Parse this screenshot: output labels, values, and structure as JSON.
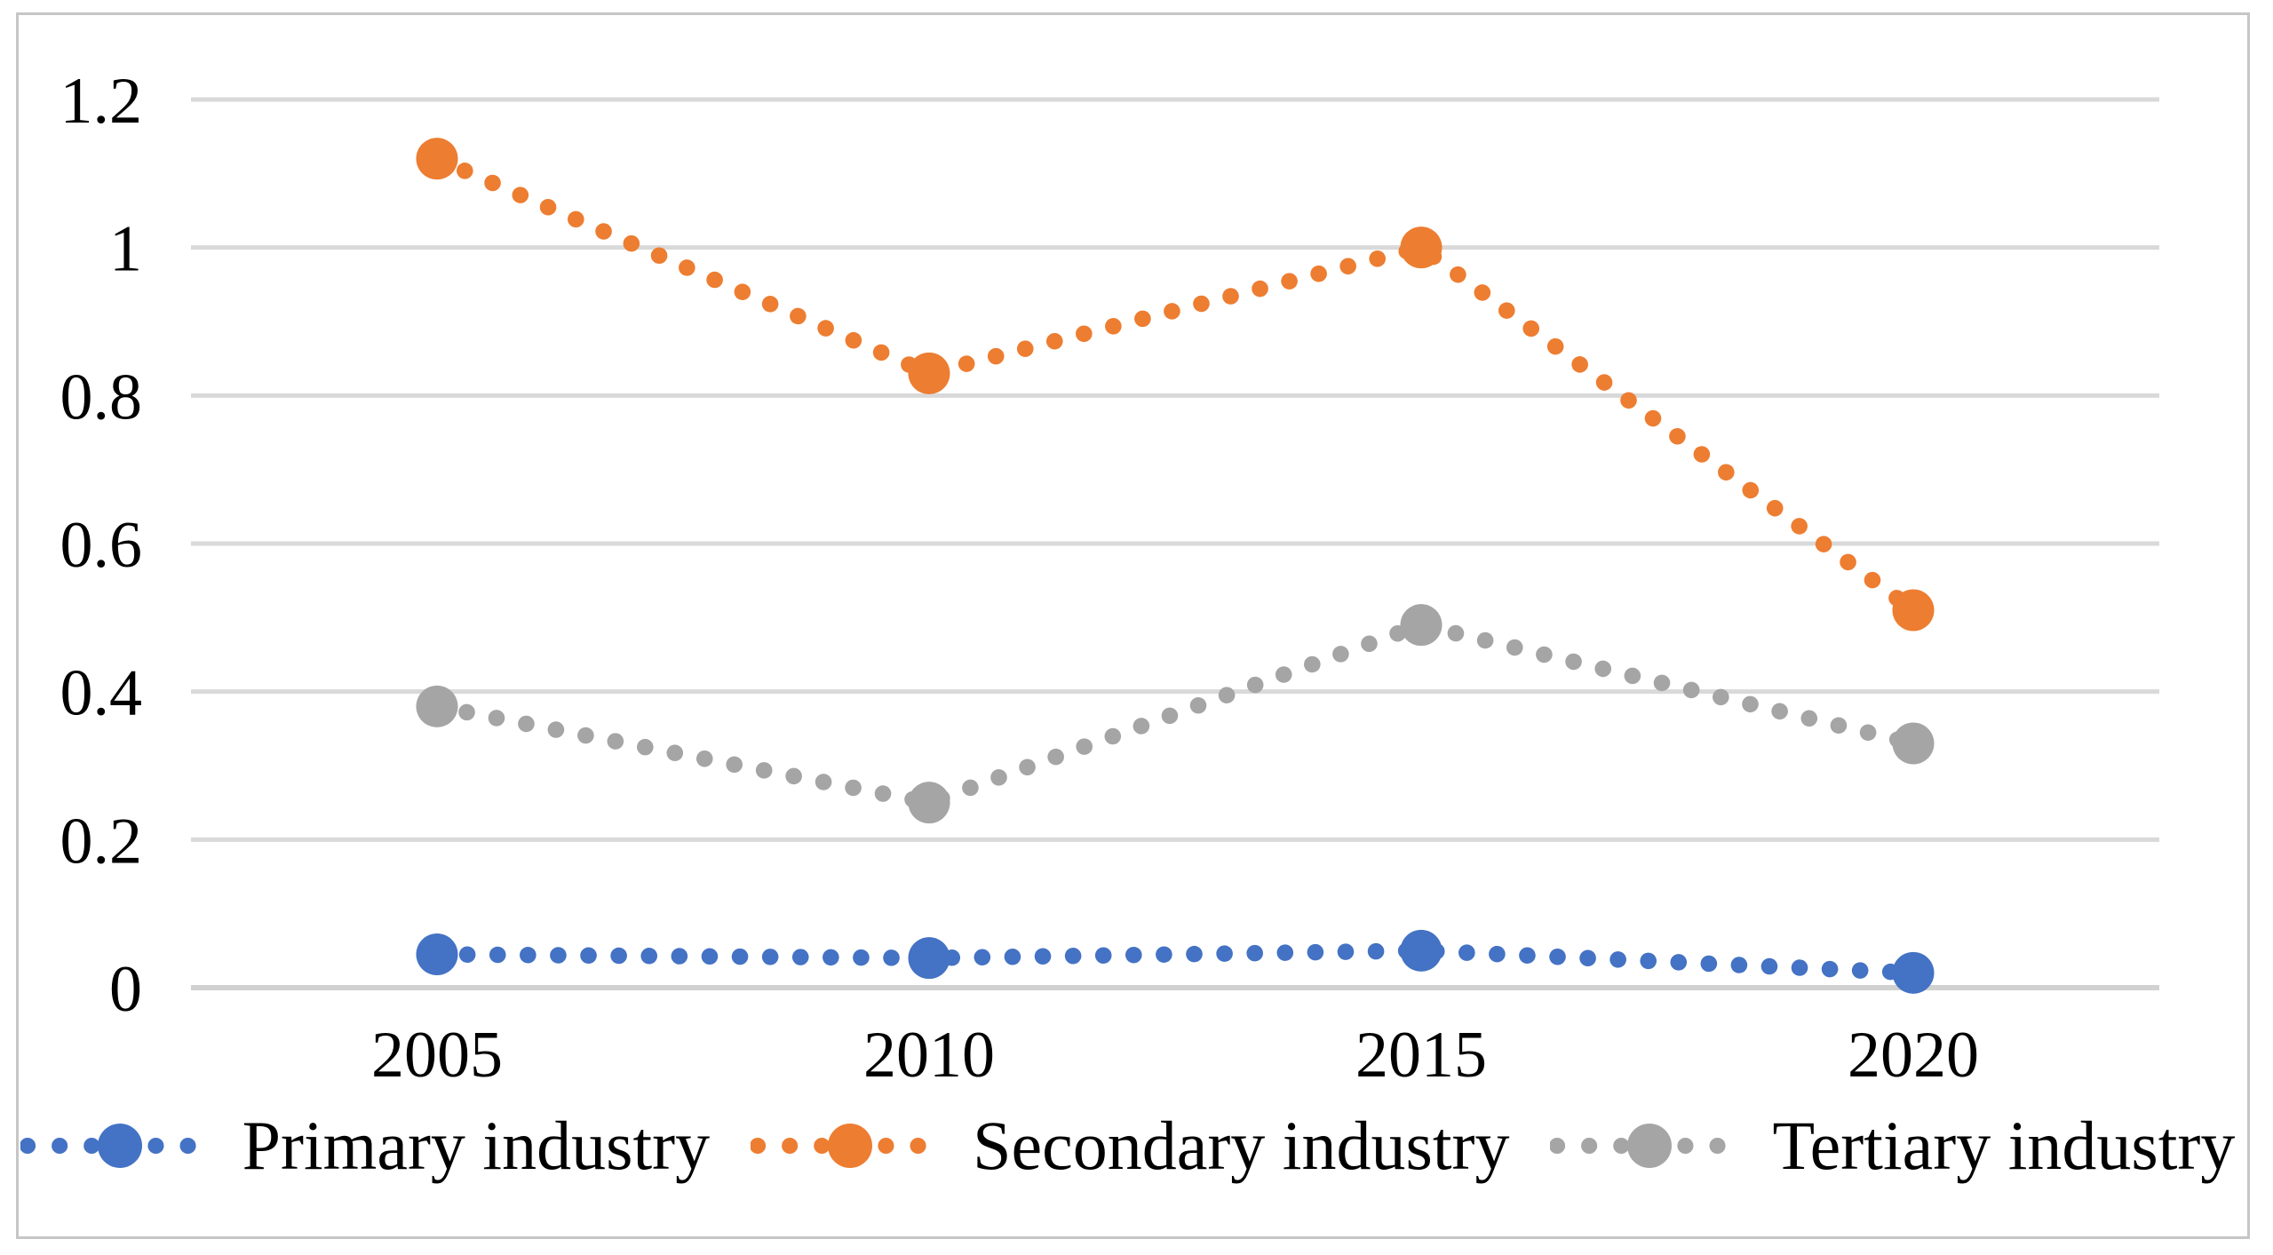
{
  "chart_data": {
    "type": "line",
    "title": "",
    "xlabel": "",
    "ylabel": "",
    "categories": [
      "2005",
      "2010",
      "2015",
      "2020"
    ],
    "series": [
      {
        "name": "Primary industry",
        "color": "#4472C4",
        "values": [
          0.045,
          0.04,
          0.05,
          0.02
        ]
      },
      {
        "name": "Secondary industry",
        "color": "#ED7D31",
        "values": [
          1.12,
          0.83,
          1.0,
          0.51
        ]
      },
      {
        "name": "Tertiary industry",
        "color": "#A5A5A5",
        "values": [
          0.38,
          0.25,
          0.49,
          0.33
        ]
      }
    ],
    "y_ticks": [
      0,
      0.2,
      0.4,
      0.6,
      0.8,
      1,
      1.2
    ],
    "y_tick_labels": [
      "0",
      "0.2",
      "0.4",
      "0.6",
      "0.8",
      "1",
      "1.2"
    ],
    "ylim": [
      0,
      1.2
    ],
    "grid": true,
    "gridlines": "horizontal",
    "line_style": "dotted",
    "marker": "circle",
    "legend_position": "bottom"
  },
  "colors": {
    "gridline": "#D9D9D9",
    "zero_line": "#D1D1D1",
    "border": "#C6C6C6",
    "text": "#000000",
    "background": "#FFFFFF"
  }
}
